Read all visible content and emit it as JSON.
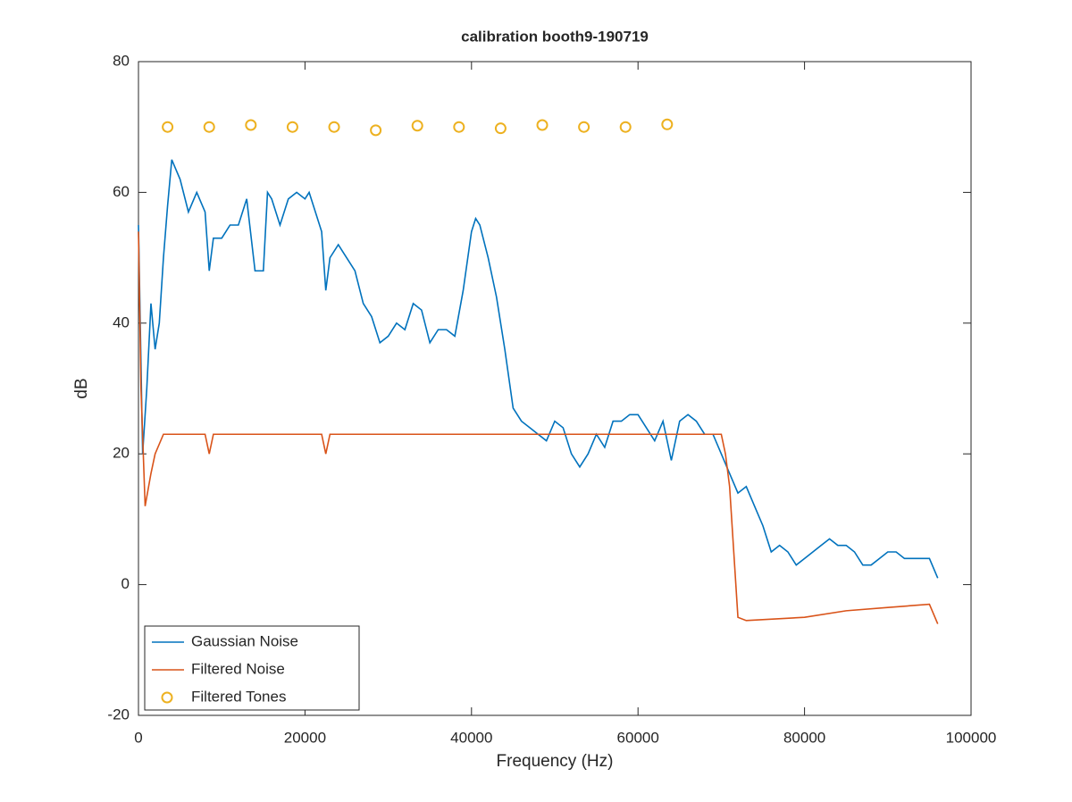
{
  "chart_data": {
    "type": "line",
    "title": "calibration booth9-190719",
    "xlabel": "Frequency (Hz)",
    "ylabel": "dB",
    "xlim": [
      0,
      100000
    ],
    "ylim": [
      -20,
      80
    ],
    "xticks": [
      0,
      20000,
      40000,
      60000,
      80000,
      100000
    ],
    "yticks": [
      -20,
      0,
      20,
      40,
      60,
      80
    ],
    "legend": "lower left",
    "series": [
      {
        "name": "Gaussian Noise",
        "color": "#0072bd",
        "style": "line",
        "x": [
          0,
          500,
          1000,
          1500,
          2000,
          2500,
          3000,
          3500,
          4000,
          5000,
          6000,
          7000,
          8000,
          8500,
          9000,
          10000,
          11000,
          12000,
          13000,
          14000,
          15000,
          15500,
          16000,
          17000,
          18000,
          19000,
          20000,
          20500,
          21000,
          22000,
          22500,
          23000,
          24000,
          25000,
          26000,
          27000,
          28000,
          29000,
          30000,
          31000,
          32000,
          33000,
          34000,
          35000,
          36000,
          37000,
          38000,
          39000,
          40000,
          40500,
          41000,
          42000,
          43000,
          44000,
          45000,
          46000,
          47000,
          48000,
          49000,
          50000,
          51000,
          52000,
          53000,
          54000,
          55000,
          56000,
          57000,
          58000,
          59000,
          60000,
          61000,
          62000,
          63000,
          64000,
          65000,
          66000,
          67000,
          68000,
          69000,
          70000,
          71000,
          72000,
          73000,
          74000,
          75000,
          76000,
          77000,
          78000,
          79000,
          80000,
          81000,
          82000,
          83000,
          84000,
          85000,
          86000,
          87000,
          88000,
          89000,
          90000,
          91000,
          92000,
          93000,
          94000,
          95000,
          96000
        ],
        "values": [
          55,
          20,
          30,
          43,
          36,
          40,
          50,
          58,
          65,
          62,
          57,
          60,
          57,
          48,
          53,
          53,
          55,
          55,
          59,
          48,
          48,
          60,
          59,
          55,
          59,
          60,
          59,
          60,
          58,
          54,
          45,
          50,
          52,
          50,
          48,
          43,
          41,
          37,
          38,
          40,
          39,
          43,
          42,
          37,
          39,
          39,
          38,
          45,
          54,
          56,
          55,
          50,
          44,
          36,
          27,
          25,
          24,
          23,
          22,
          25,
          24,
          20,
          18,
          20,
          23,
          21,
          25,
          25,
          26,
          26,
          24,
          22,
          25,
          19,
          25,
          26,
          25,
          23,
          23,
          20,
          17,
          14,
          15,
          12,
          9,
          5,
          6,
          5,
          3,
          4,
          5,
          6,
          7,
          6,
          6,
          5,
          3,
          3,
          4,
          5,
          5,
          4,
          4,
          4,
          4,
          1
        ]
      },
      {
        "name": "Filtered Noise",
        "color": "#d95319",
        "style": "line",
        "x": [
          0,
          300,
          800,
          1500,
          2000,
          3000,
          4000,
          8000,
          8500,
          9000,
          15000,
          22000,
          22500,
          23000,
          40000,
          50000,
          60000,
          70000,
          70500,
          71000,
          71500,
          72000,
          73000,
          80000,
          85000,
          90000,
          95000,
          96000
        ],
        "values": [
          54,
          30,
          12,
          17,
          20,
          23,
          23,
          23,
          20,
          23,
          23,
          23,
          20,
          23,
          23,
          23,
          23,
          23,
          20,
          15,
          5,
          -5,
          -5.5,
          -5,
          -4,
          -3.5,
          -3,
          -6
        ]
      },
      {
        "name": "Filtered Tones",
        "color": "#edb120",
        "style": "marker",
        "x": [
          3500,
          8500,
          13500,
          18500,
          23500,
          28500,
          33500,
          38500,
          43500,
          48500,
          53500,
          58500,
          63500
        ],
        "values": [
          70,
          70,
          70.3,
          70,
          70,
          69.5,
          70.2,
          70,
          69.8,
          70.3,
          70,
          70,
          70.4
        ]
      }
    ]
  }
}
